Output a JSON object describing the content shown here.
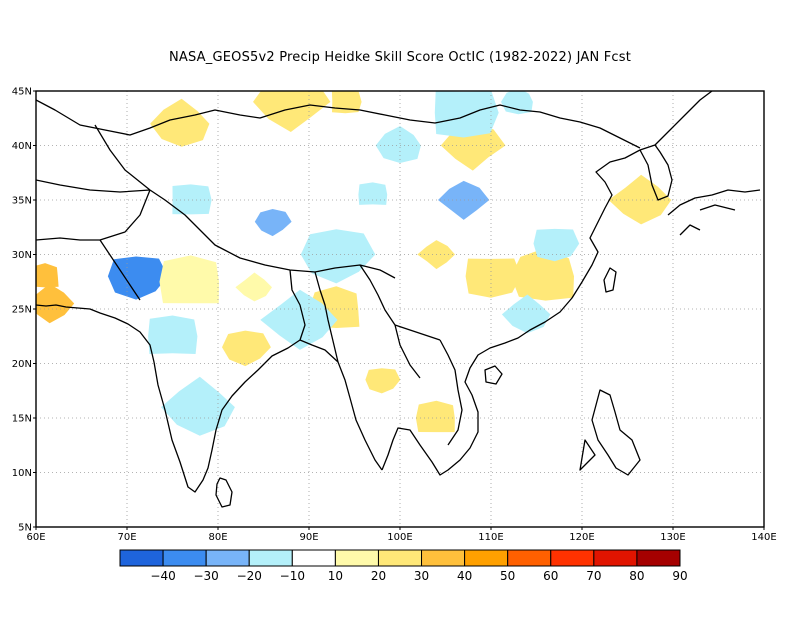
{
  "title": "NASA_GEOS5v2 Precip Heidke Skill Score OctIC (1982-2022) JAN Fcst",
  "map": {
    "lon_range": [
      60,
      140
    ],
    "lat_range": [
      5,
      45
    ],
    "lon_ticks": [
      "60E",
      "70E",
      "80E",
      "90E",
      "100E",
      "110E",
      "120E",
      "130E",
      "140E"
    ],
    "lat_ticks": [
      "5N",
      "10N",
      "15N",
      "20N",
      "25N",
      "30N",
      "35N",
      "40N",
      "45N"
    ],
    "grid": "dotted"
  },
  "colorbar": {
    "labels": [
      "−40",
      "−30",
      "−20",
      "−10",
      "10",
      "20",
      "30",
      "40",
      "50",
      "60",
      "70",
      "80",
      "90"
    ],
    "colors": [
      "#1e64dc",
      "#3c8cf0",
      "#78b4f8",
      "#b4f0fa",
      "#ffffff",
      "#fffaaa",
      "#ffe878",
      "#ffc03c",
      "#ffa000",
      "#ff6000",
      "#ff3200",
      "#e11400",
      "#a50000"
    ]
  },
  "chart_data": {
    "type": "heatmap",
    "title": "NASA_GEOS5v2 Precip Heidke Skill Score OctIC (1982-2022) JAN Fcst",
    "xlabel": "",
    "ylabel": "",
    "xlim": [
      60,
      140
    ],
    "ylim": [
      5,
      45
    ],
    "levels": [
      -50,
      -40,
      -30,
      -20,
      -10,
      10,
      20,
      30,
      40,
      50,
      60,
      70,
      80,
      90
    ],
    "patches": [
      {
        "lon": 61,
        "lat": 28,
        "value": 35
      },
      {
        "lon": 61.5,
        "lat": 25.5,
        "value": 30
      },
      {
        "lon": 71,
        "lat": 28,
        "value": -35
      },
      {
        "lon": 77,
        "lat": 27.5,
        "value": 15
      },
      {
        "lon": 84,
        "lat": 27,
        "value": 15
      },
      {
        "lon": 83,
        "lat": 21.5,
        "value": 25
      },
      {
        "lon": 75,
        "lat": 22.5,
        "value": -15
      },
      {
        "lon": 78,
        "lat": 16,
        "value": -15
      },
      {
        "lon": 86,
        "lat": 33,
        "value": -30
      },
      {
        "lon": 77,
        "lat": 35,
        "value": -20
      },
      {
        "lon": 76,
        "lat": 42,
        "value": 20
      },
      {
        "lon": 88,
        "lat": 44,
        "value": 20
      },
      {
        "lon": 94,
        "lat": 44,
        "value": 20
      },
      {
        "lon": 100,
        "lat": 40,
        "value": -15
      },
      {
        "lon": 108,
        "lat": 40,
        "value": 25
      },
      {
        "lon": 107,
        "lat": 43,
        "value": -15
      },
      {
        "lon": 113,
        "lat": 44,
        "value": -15
      },
      {
        "lon": 107,
        "lat": 35,
        "value": -25
      },
      {
        "lon": 110,
        "lat": 28,
        "value": 20
      },
      {
        "lon": 116,
        "lat": 28,
        "value": 25
      },
      {
        "lon": 104,
        "lat": 30,
        "value": 20
      },
      {
        "lon": 117,
        "lat": 31,
        "value": -15
      },
      {
        "lon": 93,
        "lat": 25,
        "value": 25
      },
      {
        "lon": 89,
        "lat": 24,
        "value": -15
      },
      {
        "lon": 98,
        "lat": 18.5,
        "value": 25
      },
      {
        "lon": 104,
        "lat": 15,
        "value": 20
      },
      {
        "lon": 126.5,
        "lat": 35,
        "value": 20
      },
      {
        "lon": 93,
        "lat": 30,
        "value": -15
      },
      {
        "lon": 97,
        "lat": 35.5,
        "value": -15
      },
      {
        "lon": 114,
        "lat": 24.5,
        "value": -15
      }
    ]
  }
}
